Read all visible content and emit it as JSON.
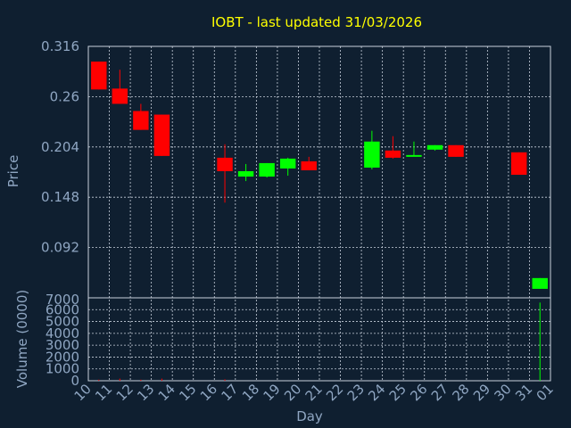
{
  "chart_data": {
    "type": "candlestick",
    "title": "IOBT - last updated 31/03/2026",
    "xlabel": "Day",
    "ylabel": "Price",
    "volume_ylabel": "Volume (0000)",
    "x_tick_labels": [
      "10",
      "11",
      "12",
      "13",
      "14",
      "15",
      "16",
      "17",
      "18",
      "19",
      "20",
      "21",
      "22",
      "23",
      "24",
      "25",
      "26",
      "27",
      "28",
      "29",
      "30",
      "31",
      "01"
    ],
    "price_ticks": [
      "0.316",
      "0.26",
      "0.204",
      "0.148",
      "0.092"
    ],
    "price_ylim": [
      0.036,
      0.316
    ],
    "volume_ticks": [
      "7000",
      "6000",
      "5000",
      "4000",
      "3000",
      "2000",
      "1000",
      "0"
    ],
    "volume_ylim": [
      0,
      7000
    ],
    "grid": true,
    "up_color": "#00ff00",
    "down_color": "#ff0000",
    "candles": [
      {
        "day": "10",
        "open": 0.299,
        "high": 0.299,
        "low": 0.268,
        "close": 0.268
      },
      {
        "day": "11",
        "open": 0.269,
        "high": 0.29,
        "low": 0.252,
        "close": 0.252
      },
      {
        "day": "12",
        "open": 0.244,
        "high": 0.252,
        "low": 0.223,
        "close": 0.223
      },
      {
        "day": "13",
        "open": 0.24,
        "high": 0.24,
        "low": 0.194,
        "close": 0.194
      },
      {
        "day": "16",
        "open": 0.192,
        "high": 0.207,
        "low": 0.142,
        "close": 0.177
      },
      {
        "day": "17",
        "open": 0.171,
        "high": 0.185,
        "low": 0.166,
        "close": 0.177
      },
      {
        "day": "18",
        "open": 0.171,
        "high": 0.186,
        "low": 0.17,
        "close": 0.186
      },
      {
        "day": "19",
        "open": 0.18,
        "high": 0.192,
        "low": 0.172,
        "close": 0.191
      },
      {
        "day": "20",
        "open": 0.188,
        "high": 0.193,
        "low": 0.178,
        "close": 0.178
      },
      {
        "day": "23",
        "open": 0.181,
        "high": 0.222,
        "low": 0.179,
        "close": 0.21
      },
      {
        "day": "24",
        "open": 0.2,
        "high": 0.216,
        "low": 0.191,
        "close": 0.192
      },
      {
        "day": "25",
        "open": 0.194,
        "high": 0.21,
        "low": 0.194,
        "close": 0.195
      },
      {
        "day": "26",
        "open": 0.201,
        "high": 0.206,
        "low": 0.2,
        "close": 0.206
      },
      {
        "day": "27",
        "open": 0.206,
        "high": 0.206,
        "low": 0.193,
        "close": 0.193
      },
      {
        "day": "30",
        "open": 0.198,
        "high": 0.198,
        "low": 0.173,
        "close": 0.173
      },
      {
        "day": "31",
        "open": 0.046,
        "high": 0.058,
        "low": 0.046,
        "close": 0.058
      }
    ],
    "volumes": [
      {
        "day": "10",
        "value": 90,
        "color": "#ff0000"
      },
      {
        "day": "11",
        "value": 180,
        "color": "#ff0000"
      },
      {
        "day": "12",
        "value": 90,
        "color": "#ff0000"
      },
      {
        "day": "13",
        "value": 180,
        "color": "#ff0000"
      },
      {
        "day": "16",
        "value": 120,
        "color": "#ff0000"
      },
      {
        "day": "31",
        "value": 6600,
        "color": "#00ff00"
      }
    ]
  }
}
